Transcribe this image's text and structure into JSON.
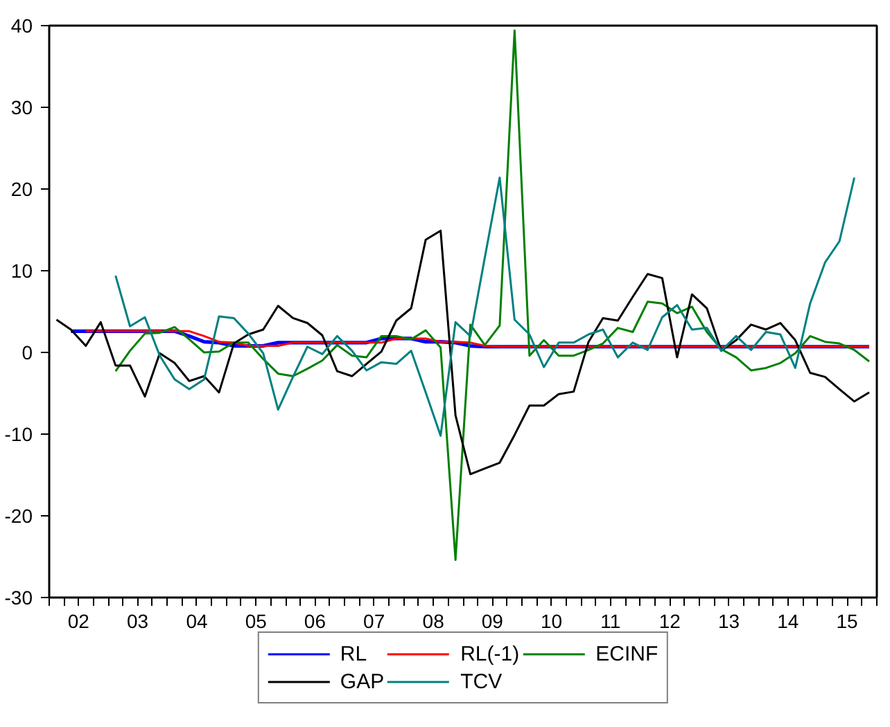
{
  "chart_data": {
    "type": "line",
    "x": [
      "2002-02-15",
      "2002-05-15",
      "2002-08-15",
      "2002-11-15",
      "2003-02-15",
      "2003-05-15",
      "2003-08-15",
      "2003-11-15",
      "2004-02-15",
      "2004-05-15",
      "2004-08-15",
      "2004-11-15",
      "2005-02-15",
      "2005-05-15",
      "2005-08-15",
      "2005-11-15",
      "2006-02-15",
      "2006-05-15",
      "2006-08-15",
      "2006-11-15",
      "2007-02-15",
      "2007-05-15",
      "2007-08-15",
      "2007-11-15",
      "2008-02-15",
      "2008-05-15",
      "2008-08-15",
      "2008-11-15",
      "2009-02-15",
      "2009-05-15",
      "2009-08-15",
      "2009-11-15",
      "2010-02-15",
      "2010-05-15",
      "2010-08-15",
      "2010-11-15",
      "2011-02-15",
      "2011-05-15",
      "2011-08-15",
      "2011-11-15",
      "2012-02-15",
      "2012-05-15",
      "2012-08-15",
      "2012-11-15",
      "2013-02-15",
      "2013-05-15",
      "2013-08-15",
      "2013-11-15",
      "2014-02-15",
      "2014-05-15",
      "2014-08-15",
      "2014-11-15",
      "2015-02-15",
      "2015-05-15",
      "2015-08-15",
      "2015-11-15"
    ],
    "series": [
      {
        "name": "RL",
        "color": "#0000ff",
        "values": [
          null,
          2.6,
          2.6,
          2.6,
          2.6,
          2.6,
          2.6,
          2.6,
          2.6,
          2.0,
          1.3,
          1.2,
          0.8,
          0.8,
          0.8,
          1.2,
          1.2,
          1.2,
          1.2,
          1.2,
          1.2,
          1.2,
          1.7,
          1.7,
          1.7,
          1.3,
          1.3,
          1.2,
          0.8,
          0.7,
          0.7,
          0.7,
          0.7,
          0.7,
          0.7,
          0.7,
          0.7,
          0.7,
          0.7,
          0.7,
          0.7,
          0.7,
          0.7,
          0.7,
          0.7,
          0.7,
          0.7,
          0.7,
          0.7,
          0.7,
          0.7,
          0.7,
          0.7,
          0.7,
          0.7,
          0.7
        ]
      },
      {
        "name": "RL(-1)",
        "color": "#ff0000",
        "values": [
          null,
          null,
          2.6,
          2.6,
          2.6,
          2.6,
          2.6,
          2.6,
          2.6,
          2.6,
          2.0,
          1.3,
          1.2,
          0.8,
          0.8,
          0.8,
          1.2,
          1.2,
          1.2,
          1.2,
          1.2,
          1.2,
          1.2,
          1.7,
          1.7,
          1.7,
          1.3,
          1.3,
          1.2,
          0.8,
          0.7,
          0.7,
          0.7,
          0.7,
          0.7,
          0.7,
          0.7,
          0.7,
          0.7,
          0.7,
          0.7,
          0.7,
          0.7,
          0.7,
          0.7,
          0.7,
          0.7,
          0.7,
          0.7,
          0.7,
          0.7,
          0.7,
          0.7,
          0.7,
          0.7,
          0.7
        ]
      },
      {
        "name": "ECINF",
        "color": "#008000",
        "values": [
          null,
          null,
          null,
          null,
          -2.3,
          0.2,
          2.3,
          2.4,
          3.1,
          1.6,
          0,
          0.1,
          1.2,
          1.2,
          -0.8,
          -2.6,
          -2.9,
          -2.0,
          -1.0,
          0.9,
          -0.4,
          -0.6,
          2.0,
          2.0,
          1.6,
          2.7,
          0.6,
          -25.4,
          3.4,
          0.9,
          3.3,
          39.4,
          -0.4,
          1.5,
          -0.4,
          -0.4,
          0.3,
          1.1,
          3.0,
          2.5,
          6.2,
          6.0,
          4.8,
          5.6,
          2.5,
          0.4,
          -0.6,
          -2.2,
          -1.9,
          -1.3,
          -0.1,
          2.0,
          1.3,
          1.1,
          0.3,
          -1.1
        ]
      },
      {
        "name": "GAP",
        "color": "#000000",
        "values": [
          4.0,
          2.8,
          0.8,
          3.7,
          -1.6,
          -1.6,
          -5.4,
          -0.1,
          -1.3,
          -3.5,
          -2.9,
          -4.9,
          1.1,
          2.2,
          2.8,
          5.7,
          4.2,
          3.6,
          2.1,
          -2.3,
          -2.9,
          -1.4,
          0.1,
          3.9,
          5.4,
          13.8,
          14.9,
          -7.7,
          -14.9,
          -14.2,
          -13.5,
          -10.1,
          -6.5,
          -6.5,
          -5.1,
          -4.8,
          1.3,
          4.2,
          3.9,
          6.8,
          9.6,
          9.1,
          -0.6,
          7.1,
          5.4,
          0.2,
          1.5,
          3.4,
          2.8,
          3.6,
          1.5,
          -2.5,
          -3.0,
          -4.5,
          -6.0,
          -4.9
        ]
      },
      {
        "name": "TCV",
        "color": "#008080",
        "values": [
          null,
          null,
          null,
          null,
          9.4,
          3.2,
          4.3,
          -0.4,
          -3.3,
          -4.5,
          -3.3,
          4.4,
          4.2,
          2.3,
          -0.1,
          -7.0,
          -3.0,
          0.7,
          -0.2,
          2.0,
          0.2,
          -2.2,
          -1.2,
          -1.4,
          0.2,
          -4.9,
          -10.2,
          3.7,
          2.0,
          11.6,
          21.4,
          4.0,
          2.2,
          -1.8,
          1.2,
          1.2,
          2.2,
          2.8,
          -0.6,
          1.2,
          0.3,
          4.3,
          5.8,
          2.8,
          3.0,
          0.2,
          2.0,
          0.3,
          2.5,
          2.2,
          -1.9,
          6.0,
          11.0,
          13.6,
          21.4,
          null
        ]
      }
    ],
    "xlim": [
      "2002-01-01",
      "2016-01-01"
    ],
    "xticks": [
      {
        "value": "2002-01-01",
        "label": null
      },
      {
        "value": "2002-04-01",
        "label": null
      },
      {
        "value": "2002-07-01",
        "label": "02"
      },
      {
        "value": "2002-10-01",
        "label": null
      },
      {
        "value": "2003-01-01",
        "label": null
      },
      {
        "value": "2003-04-01",
        "label": null
      },
      {
        "value": "2003-07-01",
        "label": "03"
      },
      {
        "value": "2003-10-01",
        "label": null
      },
      {
        "value": "2004-01-01",
        "label": null
      },
      {
        "value": "2004-04-01",
        "label": null
      },
      {
        "value": "2004-07-01",
        "label": "04"
      },
      {
        "value": "2004-10-01",
        "label": null
      },
      {
        "value": "2005-01-01",
        "label": null
      },
      {
        "value": "2005-04-01",
        "label": null
      },
      {
        "value": "2005-07-01",
        "label": "05"
      },
      {
        "value": "2005-10-01",
        "label": null
      },
      {
        "value": "2006-01-01",
        "label": null
      },
      {
        "value": "2006-04-01",
        "label": null
      },
      {
        "value": "2006-07-01",
        "label": "06"
      },
      {
        "value": "2006-10-01",
        "label": null
      },
      {
        "value": "2007-01-01",
        "label": null
      },
      {
        "value": "2007-04-01",
        "label": null
      },
      {
        "value": "2007-07-01",
        "label": "07"
      },
      {
        "value": "2007-10-01",
        "label": null
      },
      {
        "value": "2008-01-01",
        "label": null
      },
      {
        "value": "2008-04-01",
        "label": null
      },
      {
        "value": "2008-07-01",
        "label": "08"
      },
      {
        "value": "2008-10-01",
        "label": null
      },
      {
        "value": "2009-01-01",
        "label": null
      },
      {
        "value": "2009-04-01",
        "label": null
      },
      {
        "value": "2009-07-01",
        "label": "09"
      },
      {
        "value": "2009-10-01",
        "label": null
      },
      {
        "value": "2010-01-01",
        "label": null
      },
      {
        "value": "2010-04-01",
        "label": null
      },
      {
        "value": "2010-07-01",
        "label": "10"
      },
      {
        "value": "2010-10-01",
        "label": null
      },
      {
        "value": "2011-01-01",
        "label": null
      },
      {
        "value": "2011-04-01",
        "label": null
      },
      {
        "value": "2011-07-01",
        "label": "11"
      },
      {
        "value": "2011-10-01",
        "label": null
      },
      {
        "value": "2012-01-01",
        "label": null
      },
      {
        "value": "2012-04-01",
        "label": null
      },
      {
        "value": "2012-07-01",
        "label": "12"
      },
      {
        "value": "2012-10-01",
        "label": null
      },
      {
        "value": "2013-01-01",
        "label": null
      },
      {
        "value": "2013-04-01",
        "label": null
      },
      {
        "value": "2013-07-01",
        "label": "13"
      },
      {
        "value": "2013-10-01",
        "label": null
      },
      {
        "value": "2014-01-01",
        "label": null
      },
      {
        "value": "2014-04-01",
        "label": null
      },
      {
        "value": "2014-07-01",
        "label": "14"
      },
      {
        "value": "2014-10-01",
        "label": null
      },
      {
        "value": "2015-01-01",
        "label": null
      },
      {
        "value": "2015-04-01",
        "label": null
      },
      {
        "value": "2015-07-01",
        "label": "15"
      },
      {
        "value": "2015-10-01",
        "label": null
      },
      {
        "value": "2016-01-01",
        "label": null
      }
    ],
    "ylim": [
      -30,
      40
    ],
    "yticks": [
      -30,
      -20,
      -10,
      0,
      10,
      20,
      30,
      40
    ],
    "legend": "bottom",
    "line_style": "solid"
  }
}
